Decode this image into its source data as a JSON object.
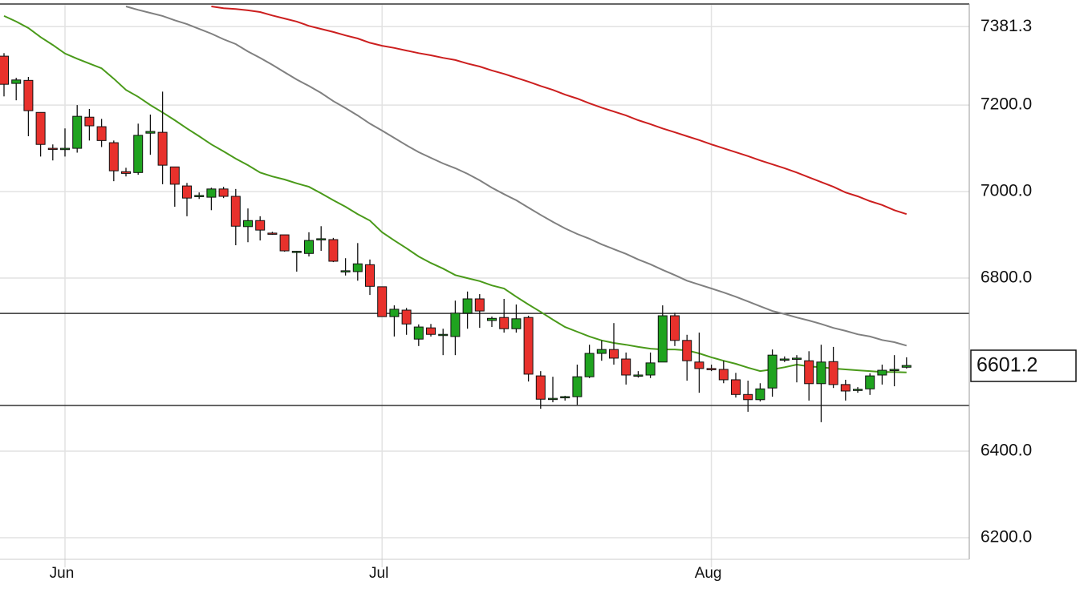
{
  "chart_data": {
    "type": "candlestick",
    "categories": [
      null,
      null,
      null,
      null,
      null,
      "Jun",
      null,
      null,
      null,
      null,
      null,
      null,
      null,
      null,
      null,
      null,
      null,
      null,
      null,
      null,
      null,
      null,
      null,
      null,
      null,
      null,
      null,
      null,
      null,
      null,
      null,
      "Jul",
      null,
      null,
      null,
      null,
      null,
      null,
      null,
      null,
      null,
      null,
      null,
      null,
      null,
      null,
      null,
      null,
      null,
      null,
      null,
      null,
      null,
      null,
      null,
      null,
      null,
      null,
      "Aug",
      null,
      null,
      null,
      null,
      null,
      null,
      null,
      null,
      null,
      null,
      null,
      null,
      null,
      null,
      null,
      null
    ],
    "open": [
      7313,
      7250,
      7257,
      7183,
      7100,
      7097,
      7100,
      7172,
      7150,
      7113,
      7046,
      7044,
      7135,
      7137,
      7057,
      7013,
      6989,
      6987,
      7006,
      6989,
      6919,
      6933,
      6904,
      6900,
      6862,
      6857,
      6890,
      6889,
      6815,
      6815,
      6831,
      6780,
      6711,
      6726,
      6659,
      6685,
      6668,
      6665,
      6719,
      6752,
      6702,
      6709,
      6683,
      6709,
      6574,
      6520,
      6524,
      6526,
      6572,
      6626,
      6635,
      6613,
      6574,
      6576,
      6606,
      6713,
      6656,
      6606,
      6591,
      6589,
      6565,
      6531,
      6519,
      6546,
      6611,
      6613,
      6609,
      6556,
      6607,
      6554,
      6541,
      6544,
      6576,
      6589,
      6594
    ],
    "high": [
      7320,
      7263,
      7265,
      7183,
      7109,
      7146,
      7200,
      7191,
      7168,
      7118,
      7055,
      7157,
      7178,
      7231,
      7057,
      7020,
      6998,
      7009,
      7011,
      7006,
      6961,
      6943,
      6907,
      6900,
      6863,
      6906,
      6920,
      6893,
      6846,
      6881,
      6843,
      6780,
      6737,
      6731,
      6693,
      6694,
      6683,
      6748,
      6769,
      6763,
      6711,
      6752,
      6739,
      6713,
      6585,
      6572,
      6528,
      6600,
      6646,
      6656,
      6696,
      6628,
      6585,
      6628,
      6737,
      6720,
      6669,
      6674,
      6600,
      6609,
      6581,
      6563,
      6557,
      6635,
      6619,
      6622,
      6631,
      6646,
      6641,
      6565,
      6548,
      6580,
      6600,
      6622,
      6617
    ],
    "low": [
      7220,
      7211,
      7128,
      7081,
      7072,
      7081,
      7090,
      7118,
      7103,
      7024,
      7035,
      7039,
      7085,
      7017,
      6965,
      6943,
      6983,
      6957,
      6985,
      6876,
      6883,
      6887,
      6900,
      6861,
      6815,
      6850,
      6863,
      6837,
      6806,
      6794,
      6761,
      6711,
      6665,
      6669,
      6643,
      6665,
      6622,
      6622,
      6683,
      6685,
      6687,
      6674,
      6674,
      6561,
      6498,
      6513,
      6517,
      6507,
      6569,
      6609,
      6600,
      6554,
      6570,
      6569,
      6606,
      6643,
      6563,
      6535,
      6585,
      6557,
      6524,
      6491,
      6515,
      6526,
      6606,
      6559,
      6517,
      6467,
      6546,
      6517,
      6535,
      6530,
      6554,
      6550,
      6591
    ],
    "close": [
      7248,
      7258,
      7187,
      7109,
      7098,
      7100,
      7174,
      7152,
      7118,
      7048,
      7042,
      7130,
      7139,
      7061,
      7017,
      6985,
      6991,
      7006,
      6989,
      6920,
      6933,
      6911,
      6902,
      6863,
      6862,
      6887,
      6891,
      6839,
      6817,
      6833,
      6781,
      6711,
      6728,
      6694,
      6687,
      6670,
      6670,
      6719,
      6752,
      6724,
      6707,
      6683,
      6706,
      6578,
      6520,
      6522,
      6526,
      6572,
      6626,
      6635,
      6615,
      6576,
      6576,
      6604,
      6713,
      6656,
      6609,
      6591,
      6589,
      6565,
      6531,
      6519,
      6544,
      6622,
      6613,
      6615,
      6556,
      6606,
      6554,
      6539,
      6543,
      6574,
      6587,
      6589,
      6598
    ],
    "up_color": "#1fa31f",
    "down_color": "#e8312c",
    "moving_averages": [
      {
        "color": "#4a9a1a",
        "values": [
          7406,
          7393,
          7378,
          7357,
          7339,
          7319,
          7307,
          7296,
          7285,
          7261,
          7235,
          7219,
          7200,
          7183,
          7165,
          7146,
          7128,
          7109,
          7093,
          7076,
          7061,
          7044,
          7035,
          7028,
          7019,
          7011,
          6996,
          6980,
          6965,
          6948,
          6933,
          6906,
          6887,
          6869,
          6850,
          6835,
          6822,
          6807,
          6800,
          6793,
          6783,
          6776,
          6757,
          6739,
          6722,
          6704,
          6687,
          6676,
          6665,
          6656,
          6650,
          6646,
          6641,
          6637,
          6635,
          6635,
          6633,
          6626,
          6617,
          6609,
          6602,
          6593,
          6585,
          6589,
          6594,
          6600,
          6596,
          6594,
          6591,
          6589,
          6587,
          6585,
          6583,
          6583,
          6582
        ]
      },
      {
        "color": "#808080",
        "values": [
          null,
          null,
          null,
          null,
          null,
          null,
          null,
          null,
          null,
          null,
          7428,
          7420,
          7413,
          7406,
          7396,
          7387,
          7376,
          7365,
          7352,
          7341,
          7324,
          7309,
          7293,
          7276,
          7259,
          7244,
          7228,
          7209,
          7193,
          7176,
          7157,
          7141,
          7124,
          7107,
          7091,
          7078,
          7065,
          7054,
          7041,
          7026,
          7009,
          6994,
          6980,
          6963,
          6946,
          6930,
          6915,
          6902,
          6891,
          6878,
          6867,
          6856,
          6843,
          6832,
          6819,
          6807,
          6794,
          6785,
          6776,
          6767,
          6757,
          6746,
          6735,
          6724,
          6717,
          6709,
          6702,
          6694,
          6685,
          6678,
          6670,
          6665,
          6657,
          6652,
          6644
        ]
      },
      {
        "color": "#cc1f1f",
        "values": [
          null,
          null,
          null,
          null,
          null,
          null,
          null,
          null,
          null,
          null,
          null,
          null,
          null,
          null,
          null,
          null,
          null,
          7428,
          7424,
          7422,
          7419,
          7415,
          7407,
          7400,
          7393,
          7383,
          7376,
          7369,
          7361,
          7354,
          7344,
          7337,
          7332,
          7326,
          7320,
          7315,
          7309,
          7304,
          7296,
          7289,
          7280,
          7272,
          7263,
          7254,
          7244,
          7235,
          7224,
          7215,
          7204,
          7194,
          7185,
          7176,
          7165,
          7156,
          7146,
          7137,
          7128,
          7119,
          7109,
          7100,
          7091,
          7082,
          7072,
          7063,
          7054,
          7044,
          7033,
          7022,
          7011,
          6998,
          6989,
          6978,
          6969,
          6957,
          6948
        ]
      }
    ],
    "hlines": [
      6718.5,
      6505.6
    ],
    "last_price": 6601.2,
    "ylim": [
      6150,
      7428
    ],
    "yticks": [
      {
        "value": 6200,
        "label": "6200.0"
      },
      {
        "value": 6400,
        "label": "6400.0"
      },
      {
        "value": 6800,
        "label": "6800.0"
      },
      {
        "value": 7000,
        "label": "7000.0"
      },
      {
        "value": 7200,
        "label": "7200.0"
      },
      7381.3
    ],
    "grid": true
  }
}
